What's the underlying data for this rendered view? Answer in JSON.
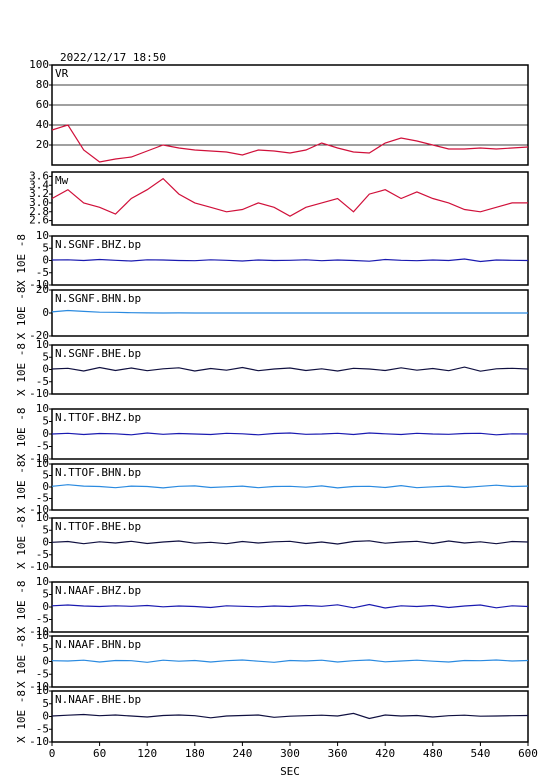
{
  "chart_data": {
    "type": "line",
    "title": "2022/12/17  18:50",
    "xlabel": "SEC",
    "x": [
      0,
      20,
      40,
      60,
      80,
      100,
      120,
      140,
      160,
      180,
      200,
      220,
      240,
      260,
      280,
      300,
      320,
      340,
      360,
      380,
      400,
      420,
      440,
      460,
      480,
      500,
      520,
      540,
      560,
      580,
      600
    ],
    "xlim": [
      0,
      600
    ],
    "xticks": [
      0,
      60,
      120,
      180,
      240,
      300,
      360,
      420,
      480,
      540,
      600
    ],
    "panels": [
      {
        "ylim": [
          0,
          100
        ],
        "yticks": [
          20,
          40,
          60,
          80,
          100
        ],
        "grid": true,
        "series": [
          {
            "name": "VR",
            "color": "#d0103a",
            "values": [
              35,
              40,
              15,
              3,
              6,
              8,
              14,
              20,
              17,
              15,
              14,
              13,
              10,
              15,
              14,
              12,
              15,
              22,
              17,
              13,
              12,
              22,
              27,
              24,
              20,
              16,
              16,
              17,
              16,
              17,
              18
            ]
          }
        ]
      },
      {
        "ylim": [
          2.5,
          3.7
        ],
        "yticks": [
          2.6,
          2.8,
          {
            "value": 3,
            "label": "3.0"
          },
          3.2,
          3.4,
          3.6
        ],
        "series": [
          {
            "name": "Mw",
            "color": "#d0103a",
            "values": [
              3.1,
              3.3,
              3.0,
              2.9,
              2.75,
              3.1,
              3.3,
              3.55,
              3.2,
              3.0,
              2.9,
              2.8,
              2.85,
              3.0,
              2.9,
              2.7,
              2.9,
              3.0,
              3.1,
              2.8,
              3.2,
              3.3,
              3.1,
              3.25,
              3.1,
              3.0,
              2.85,
              2.8,
              2.9,
              3.0,
              3.0
            ]
          }
        ]
      },
      {
        "ylabel": "X 10E -8",
        "ylim": [
          -10,
          10
        ],
        "yticks": [
          -10,
          -5,
          0,
          5,
          10
        ],
        "series": [
          {
            "name": "N.SGNF.BHZ.bp",
            "color": "#1a1ab0",
            "values": [
              0.2,
              0.3,
              0,
              0.4,
              0.1,
              -0.2,
              0.3,
              0.2,
              0,
              -0.1,
              0.3,
              0.1,
              -0.2,
              0.2,
              0,
              0.1,
              0.3,
              -0.1,
              0.2,
              0,
              -0.3,
              0.4,
              0.1,
              -0.1,
              0.2,
              0,
              0.6,
              -0.4,
              0.2,
              0.1,
              0
            ]
          }
        ]
      },
      {
        "ylabel": "X 10E -8",
        "ylim": [
          -20,
          20
        ],
        "yticks": [
          -20,
          0,
          20
        ],
        "series": [
          {
            "name": "N.SGNF.BHN.bp",
            "color": "#2a8ae0",
            "values": [
              1,
              2.2,
              1.4,
              0.7,
              0.6,
              0.3,
              0.1,
              0,
              0.1,
              0,
              0,
              0,
              0,
              0,
              0,
              0,
              0,
              0,
              0,
              0,
              0,
              0,
              0,
              0,
              0,
              0,
              0,
              0,
              0,
              0,
              0
            ]
          }
        ]
      },
      {
        "ylabel": "X 10E -8",
        "ylim": [
          -10,
          10
        ],
        "yticks": [
          -10,
          -5,
          0,
          5,
          10
        ],
        "series": [
          {
            "name": "N.SGNF.BHE.bp",
            "color": "#101040",
            "values": [
              0.2,
              0.5,
              -0.6,
              0.8,
              -0.4,
              0.6,
              -0.5,
              0.3,
              0.7,
              -0.6,
              0.4,
              -0.3,
              0.8,
              -0.5,
              0.2,
              0.6,
              -0.4,
              0.3,
              -0.6,
              0.5,
              0.2,
              -0.4,
              0.7,
              -0.3,
              0.4,
              -0.5,
              1,
              -0.7,
              0.3,
              0.5,
              0.2
            ]
          }
        ]
      },
      {
        "ylabel": "X 10E -8",
        "ylim": [
          -10,
          10
        ],
        "yticks": [
          -10,
          -5,
          0,
          5,
          10
        ],
        "series": [
          {
            "name": "N.TTOF.BHZ.bp",
            "color": "#1a1ab0",
            "values": [
              0,
              0.3,
              -0.2,
              0.2,
              0.1,
              -0.3,
              0.4,
              -0.1,
              0.2,
              0,
              -0.2,
              0.3,
              0.1,
              -0.3,
              0.2,
              0.4,
              -0.1,
              0,
              0.3,
              -0.2,
              0.4,
              0.1,
              -0.2,
              0.3,
              0,
              -0.1,
              0.2,
              0.3,
              -0.3,
              0.1,
              0
            ]
          }
        ]
      },
      {
        "ylabel": "X 10E -8",
        "ylim": [
          -10,
          10
        ],
        "yticks": [
          -10,
          -5,
          0,
          5,
          10
        ],
        "series": [
          {
            "name": "N.TTOF.BHN.bp",
            "color": "#2a8ae0",
            "values": [
              0.3,
              1,
              0.4,
              0.2,
              -0.3,
              0.4,
              0.2,
              -0.4,
              0.3,
              0.5,
              -0.2,
              0.1,
              0.4,
              -0.3,
              0.2,
              0.3,
              -0.1,
              0.5,
              -0.4,
              0.2,
              0.3,
              -0.2,
              0.6,
              -0.3,
              0.1,
              0.4,
              -0.2,
              0.3,
              0.8,
              0.2,
              0.4
            ]
          }
        ]
      },
      {
        "ylabel": "X 10E -8",
        "ylim": [
          -10,
          10
        ],
        "yticks": [
          -10,
          -5,
          0,
          5,
          10
        ],
        "series": [
          {
            "name": "N.TTOF.BHE.bp",
            "color": "#101040",
            "values": [
              0.1,
              0.4,
              -0.5,
              0.3,
              -0.2,
              0.5,
              -0.4,
              0.2,
              0.6,
              -0.3,
              0.1,
              -0.5,
              0.4,
              -0.2,
              0.3,
              0.5,
              -0.4,
              0.2,
              -0.6,
              0.4,
              0.7,
              -0.3,
              0.2,
              0.5,
              -0.4,
              0.6,
              -0.2,
              0.3,
              -0.5,
              0.4,
              0.2
            ]
          }
        ]
      },
      {
        "ylabel": "X 10E -8",
        "ylim": [
          -10,
          10
        ],
        "yticks": [
          -10,
          -5,
          0,
          5,
          10
        ],
        "series": [
          {
            "name": "N.NAAF.BHZ.bp",
            "color": "#1a1ab0",
            "values": [
              0.5,
              0.8,
              0.4,
              0.2,
              0.5,
              0.3,
              0.6,
              0.1,
              0.4,
              0.2,
              -0.2,
              0.5,
              0.3,
              0.1,
              0.4,
              0.2,
              0.6,
              0.3,
              0.9,
              -0.3,
              1,
              -0.4,
              0.5,
              0.2,
              0.6,
              -0.2,
              0.4,
              0.8,
              -0.3,
              0.5,
              0.2
            ]
          }
        ]
      },
      {
        "ylabel": "X 10E -8",
        "ylim": [
          -10,
          10
        ],
        "yticks": [
          -10,
          -5,
          0,
          5,
          10
        ],
        "series": [
          {
            "name": "N.NAAF.BHN.bp",
            "color": "#2a8ae0",
            "values": [
              0.3,
              0.2,
              0.5,
              -0.2,
              0.4,
              0.3,
              -0.3,
              0.5,
              0.1,
              0.4,
              -0.2,
              0.3,
              0.6,
              0.1,
              -0.3,
              0.4,
              0.2,
              0.5,
              -0.2,
              0.3,
              0.6,
              -0.1,
              0.2,
              0.5,
              0.1,
              -0.2,
              0.4,
              0.3,
              0.6,
              0.2,
              0.4
            ]
          }
        ]
      },
      {
        "ylabel": "X 10E -8",
        "ylim": [
          -10,
          10
        ],
        "yticks": [
          -10,
          -5,
          0,
          5,
          10
        ],
        "series": [
          {
            "name": "N.NAAF.BHE.bp",
            "color": "#101040",
            "values": [
              0.2,
              0.5,
              0.8,
              0.3,
              0.6,
              0.2,
              -0.2,
              0.4,
              0.6,
              0.3,
              -0.5,
              0.2,
              0.4,
              0.6,
              -0.3,
              0.1,
              0.3,
              0.5,
              0.2,
              1.2,
              -0.8,
              0.6,
              0.2,
              0.4,
              -0.2,
              0.3,
              0.5,
              0.1,
              0.2,
              0.3,
              0.4
            ]
          }
        ]
      }
    ]
  }
}
